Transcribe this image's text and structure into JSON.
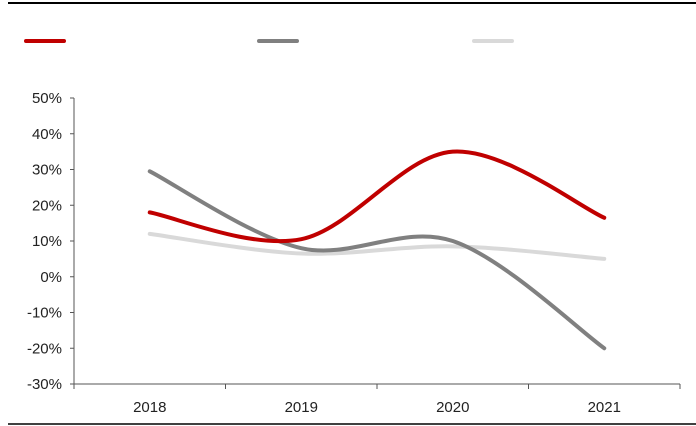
{
  "chart_data": {
    "type": "line",
    "categories": [
      "2018",
      "2019",
      "2020",
      "2021"
    ],
    "y_tick_labels": [
      "50%",
      "40%",
      "30%",
      "20%",
      "10%",
      "0%",
      "-10%",
      "-20%",
      "-30%"
    ],
    "ylim": [
      -30,
      50
    ],
    "y_unit": "%",
    "grid": false,
    "legend_position": "top-left",
    "smooth_lines": true,
    "series": [
      {
        "color": "#c00000",
        "values": [
          18,
          10.5,
          35,
          16.5
        ]
      },
      {
        "color": "#808080",
        "values": [
          29.5,
          8,
          10,
          -20
        ]
      },
      {
        "color": "#d9d9d9",
        "values": [
          12,
          6.5,
          8.5,
          5
        ]
      }
    ]
  }
}
